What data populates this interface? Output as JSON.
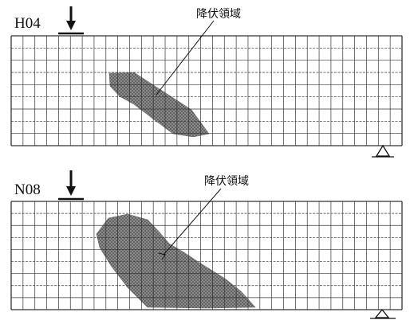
{
  "figure": {
    "panels": [
      {
        "id": "H04",
        "label": "H04",
        "annotation": "降伏領域",
        "has_load_arrow": true,
        "has_support": true
      },
      {
        "id": "N08",
        "label": "N08",
        "annotation": "降伏領域",
        "has_load_arrow": true,
        "has_support": true
      }
    ],
    "colors": {
      "grid": "#333333",
      "yield_region": "#7a7a7a",
      "background": "#ffffff"
    },
    "icons": [
      "down-arrow-icon",
      "triangle-support-icon"
    ]
  }
}
